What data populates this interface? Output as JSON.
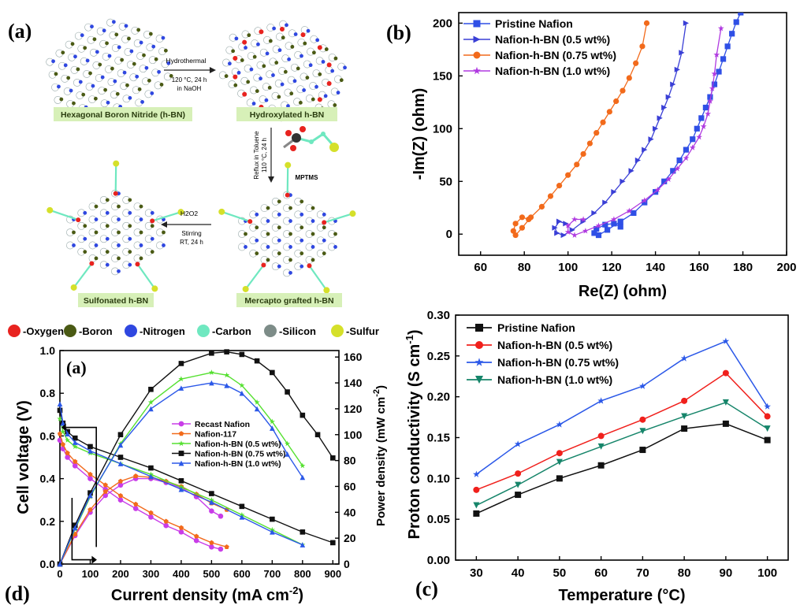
{
  "panel_a": {
    "letter": "(a)",
    "label_hbn": "Hexagonal Boron Nitride (h-BN)",
    "label_hydroxylated": "Hydroxylated h-BN",
    "label_sulfonated": "Sulfonated h-BN",
    "label_mercapto": "Mercapto grafted h-BN",
    "step1_label": "Hydrothermal",
    "step1_cond1": "120 °C, 24 h",
    "step1_cond2": "in NaOH",
    "step2_label1": "Reflux in Toluene",
    "step2_label2": "110 °C, 24 h",
    "step2_reagent": "MPTMS",
    "step3_label": "H2O2",
    "step3_cond1": "Stirring",
    "step3_cond2": "RT, 24 h",
    "legend": [
      {
        "label": "-Oxygen",
        "color": "#e8231f"
      },
      {
        "label": "-Boron",
        "color": "#4a5a14"
      },
      {
        "label": "-Nitrogen",
        "color": "#2f47e0"
      },
      {
        "label": "-Carbon",
        "color": "#6fe8c0"
      },
      {
        "label": "-Silicon",
        "color": "#7d8c88"
      },
      {
        "label": "-Sulfur",
        "color": "#d5e02a"
      }
    ],
    "colors": {
      "highlight": "#d7f0b8",
      "boron": "#4a5a14",
      "nitrogen": "#2f47e0",
      "oxygen": "#e8231f",
      "carbon": "#6fe8c0",
      "sulfur": "#d5e02a"
    }
  },
  "chart_data": [
    {
      "id": "panel_b",
      "letter": "(b)",
      "type": "scatter",
      "xlabel": "Re(Z) (ohm)",
      "ylabel": "-Im(Z) (ohm)",
      "xlim": [
        50,
        200
      ],
      "ylim": [
        -20,
        210
      ],
      "xticks": [
        60,
        80,
        100,
        120,
        140,
        160,
        180,
        200
      ],
      "yticks": [
        0,
        50,
        100,
        150,
        200
      ],
      "legend_position": "top-left",
      "series": [
        {
          "name": "Pristine Nafion",
          "color": "#2f4fe6",
          "marker": "square",
          "x": [
            124,
            121,
            117,
            113,
            112,
            114,
            118,
            124,
            130,
            135,
            140,
            144,
            148,
            151,
            154,
            157,
            159,
            161,
            163,
            165,
            167,
            169,
            171,
            173,
            175,
            177,
            179
          ],
          "y": [
            7,
            10,
            9,
            5,
            1,
            -1,
            4,
            12,
            20,
            30,
            40,
            50,
            60,
            70,
            80,
            90,
            100,
            110,
            120,
            130,
            142,
            154,
            166,
            178,
            190,
            201,
            210
          ]
        },
        {
          "name": "Nafion-h-BN (0.5 wt%)",
          "color": "#3a3fd6",
          "marker": "triangle-right",
          "x": [
            99,
            96,
            94,
            95,
            98,
            102,
            107,
            112,
            117,
            121,
            125,
            129,
            132,
            135,
            138,
            140,
            142,
            144,
            146,
            148,
            150,
            152,
            154
          ],
          "y": [
            10,
            12,
            6,
            1,
            -1,
            4,
            12,
            20,
            30,
            40,
            50,
            60,
            70,
            80,
            90,
            100,
            110,
            120,
            130,
            142,
            156,
            172,
            200
          ]
        },
        {
          "name": "Nafion-h-BN (0.75 wt%)",
          "color": "#f26a1b",
          "marker": "circle",
          "x": [
            82,
            79,
            76,
            75,
            76,
            79,
            83,
            88,
            92,
            96,
            100,
            104,
            107,
            110,
            113,
            116,
            119,
            122,
            125,
            128,
            131,
            134,
            136
          ],
          "y": [
            14,
            16,
            10,
            3,
            -1,
            6,
            16,
            26,
            36,
            46,
            56,
            66,
            76,
            86,
            96,
            106,
            116,
            126,
            136,
            148,
            162,
            178,
            200
          ]
        },
        {
          "name": "Nafion-h-BN (1.0 wt%)",
          "color": "#b03ae0",
          "marker": "star",
          "x": [
            107,
            103,
            100,
            100,
            103,
            108,
            114,
            121,
            128,
            135,
            141,
            146,
            150,
            154,
            157,
            160,
            162,
            164,
            165,
            166,
            167,
            168,
            170
          ],
          "y": [
            14,
            14,
            8,
            2,
            -1,
            3,
            8,
            14,
            22,
            32,
            42,
            52,
            62,
            72,
            82,
            92,
            102,
            114,
            126,
            138,
            152,
            170,
            195
          ]
        }
      ]
    },
    {
      "id": "panel_c",
      "letter": "(c)",
      "type": "line",
      "xlabel": "Temperature (°C)",
      "ylabel": "Proton conductivity (S cm",
      "ylabel_sup": "-1",
      "ylabel_close": ")",
      "x": [
        30,
        40,
        50,
        60,
        70,
        80,
        90,
        100
      ],
      "xlim": [
        25,
        105
      ],
      "ylim": [
        0,
        0.3
      ],
      "yticks": [
        "0.00",
        "0.05",
        "0.10",
        "0.15",
        "0.20",
        "0.25",
        "0.30"
      ],
      "legend_position": "top-left",
      "series": [
        {
          "name": "Pristine Nafion",
          "color": "#111111",
          "marker": "square",
          "values": [
            0.057,
            0.08,
            0.1,
            0.116,
            0.135,
            0.161,
            0.167,
            0.147
          ]
        },
        {
          "name": "Nafion-h-BN (0.5 wt%)",
          "color": "#f0201c",
          "marker": "circle",
          "values": [
            0.086,
            0.106,
            0.131,
            0.152,
            0.172,
            0.195,
            0.229,
            0.176
          ]
        },
        {
          "name": "Nafion-h-BN (0.75 wt%)",
          "color": "#2b58e8",
          "marker": "star",
          "values": [
            0.105,
            0.142,
            0.166,
            0.195,
            0.213,
            0.247,
            0.268,
            0.188
          ]
        },
        {
          "name": "Nafion-h-BN (1.0 wt%)",
          "color": "#16856a",
          "marker": "triangle-down",
          "values": [
            0.067,
            0.092,
            0.12,
            0.139,
            0.158,
            0.176,
            0.193,
            0.161
          ]
        }
      ]
    },
    {
      "id": "panel_d",
      "letter": "(d)",
      "inner_letter": "(a)",
      "type": "line",
      "xlabel": "Current density (mA cm",
      "xlabel_sup": "-2",
      "xlabel_close": ")",
      "ylabel": "Cell voltage (V)",
      "y2label": "Power density (mW cm",
      "y2label_sup": "-2",
      "y2label_close": ")",
      "xlim": [
        0,
        920
      ],
      "xticks": [
        0,
        100,
        200,
        300,
        400,
        500,
        600,
        700,
        800,
        900
      ],
      "ylim": [
        0,
        1.0
      ],
      "yticks": [
        "0.0",
        "0.2",
        "0.4",
        "0.6",
        "0.8",
        "1.0"
      ],
      "y2lim": [
        0,
        165
      ],
      "y2ticks": [
        0,
        20,
        40,
        60,
        80,
        100,
        120,
        140,
        160
      ],
      "legend_position": "center",
      "series": [
        {
          "name": "Recast Nafion",
          "color": "#c93de8",
          "marker": "circle",
          "voltage": {
            "x": [
              0,
              10,
              25,
              50,
              100,
              150,
              200,
              250,
              300,
              350,
              400,
              450,
              500,
              530
            ],
            "y": [
              0.58,
              0.54,
              0.5,
              0.46,
              0.4,
              0.35,
              0.3,
              0.26,
              0.22,
              0.18,
              0.15,
              0.11,
              0.08,
              0.07
            ]
          },
          "power": {
            "x": [
              0,
              50,
              100,
              150,
              200,
              250,
              300,
              350,
              400,
              450,
              500,
              530
            ],
            "y": [
              0,
              22,
              40,
              53,
              61,
              66,
              66,
              63,
              59,
              52,
              41,
              37
            ]
          }
        },
        {
          "name": "Nafion-117",
          "color": "#f26a1b",
          "marker": "pentagon",
          "voltage": {
            "x": [
              0,
              10,
              25,
              50,
              100,
              150,
              200,
              250,
              300,
              350,
              400,
              450,
              500,
              550
            ],
            "y": [
              0.61,
              0.56,
              0.52,
              0.48,
              0.42,
              0.37,
              0.32,
              0.28,
              0.24,
              0.2,
              0.17,
              0.13,
              0.1,
              0.08
            ]
          },
          "power": {
            "x": [
              0,
              50,
              100,
              150,
              200,
              250,
              300,
              350,
              400,
              450,
              500,
              550
            ],
            "y": [
              0,
              23,
              42,
              56,
              64,
              68,
              67,
              64,
              60,
              54,
              47,
              42
            ]
          }
        },
        {
          "name": "Nafion-h-BN (0.5 wt%)",
          "color": "#55e030",
          "marker": "star",
          "voltage": {
            "x": [
              0,
              10,
              25,
              50,
              100,
              200,
              300,
              400,
              500,
              600,
              700,
              800
            ],
            "y": [
              0.68,
              0.62,
              0.58,
              0.55,
              0.52,
              0.47,
              0.42,
              0.36,
              0.3,
              0.23,
              0.16,
              0.09
            ]
          },
          "power": {
            "x": [
              0,
              50,
              100,
              200,
              300,
              400,
              500,
              550,
              600,
              650,
              700,
              750,
              800
            ],
            "y": [
              0,
              27,
              52,
              93,
              125,
              143,
              148,
              146,
              138,
              125,
              110,
              93,
              76
            ]
          }
        },
        {
          "name": "Nafion-h-BN (0.75 wt%)",
          "color": "#111111",
          "marker": "square",
          "voltage": {
            "x": [
              0,
              10,
              25,
              50,
              100,
              200,
              300,
              400,
              500,
              600,
              700,
              800,
              900
            ],
            "y": [
              0.72,
              0.66,
              0.62,
              0.59,
              0.55,
              0.5,
              0.45,
              0.39,
              0.33,
              0.27,
              0.21,
              0.15,
              0.1
            ]
          },
          "power": {
            "x": [
              0,
              50,
              100,
              200,
              300,
              400,
              500,
              550,
              600,
              650,
              700,
              750,
              800,
              850,
              900
            ],
            "y": [
              0,
              30,
              55,
              100,
              135,
              155,
              163,
              164,
              162,
              157,
              148,
              133,
              115,
              100,
              82
            ]
          }
        },
        {
          "name": "Nafion-h-BN (1.0 wt%)",
          "color": "#2b58e8",
          "marker": "triangle-up",
          "voltage": {
            "x": [
              0,
              10,
              25,
              50,
              100,
              200,
              300,
              400,
              500,
              600,
              700,
              800
            ],
            "y": [
              0.75,
              0.66,
              0.61,
              0.57,
              0.53,
              0.47,
              0.41,
              0.35,
              0.29,
              0.22,
              0.15,
              0.09
            ]
          },
          "power": {
            "x": [
              0,
              50,
              100,
              200,
              300,
              400,
              500,
              550,
              600,
              650,
              700,
              750,
              800
            ],
            "y": [
              0,
              28,
              53,
              92,
              120,
              136,
              140,
              138,
              132,
              120,
              105,
              85,
              67
            ]
          }
        }
      ]
    }
  ]
}
